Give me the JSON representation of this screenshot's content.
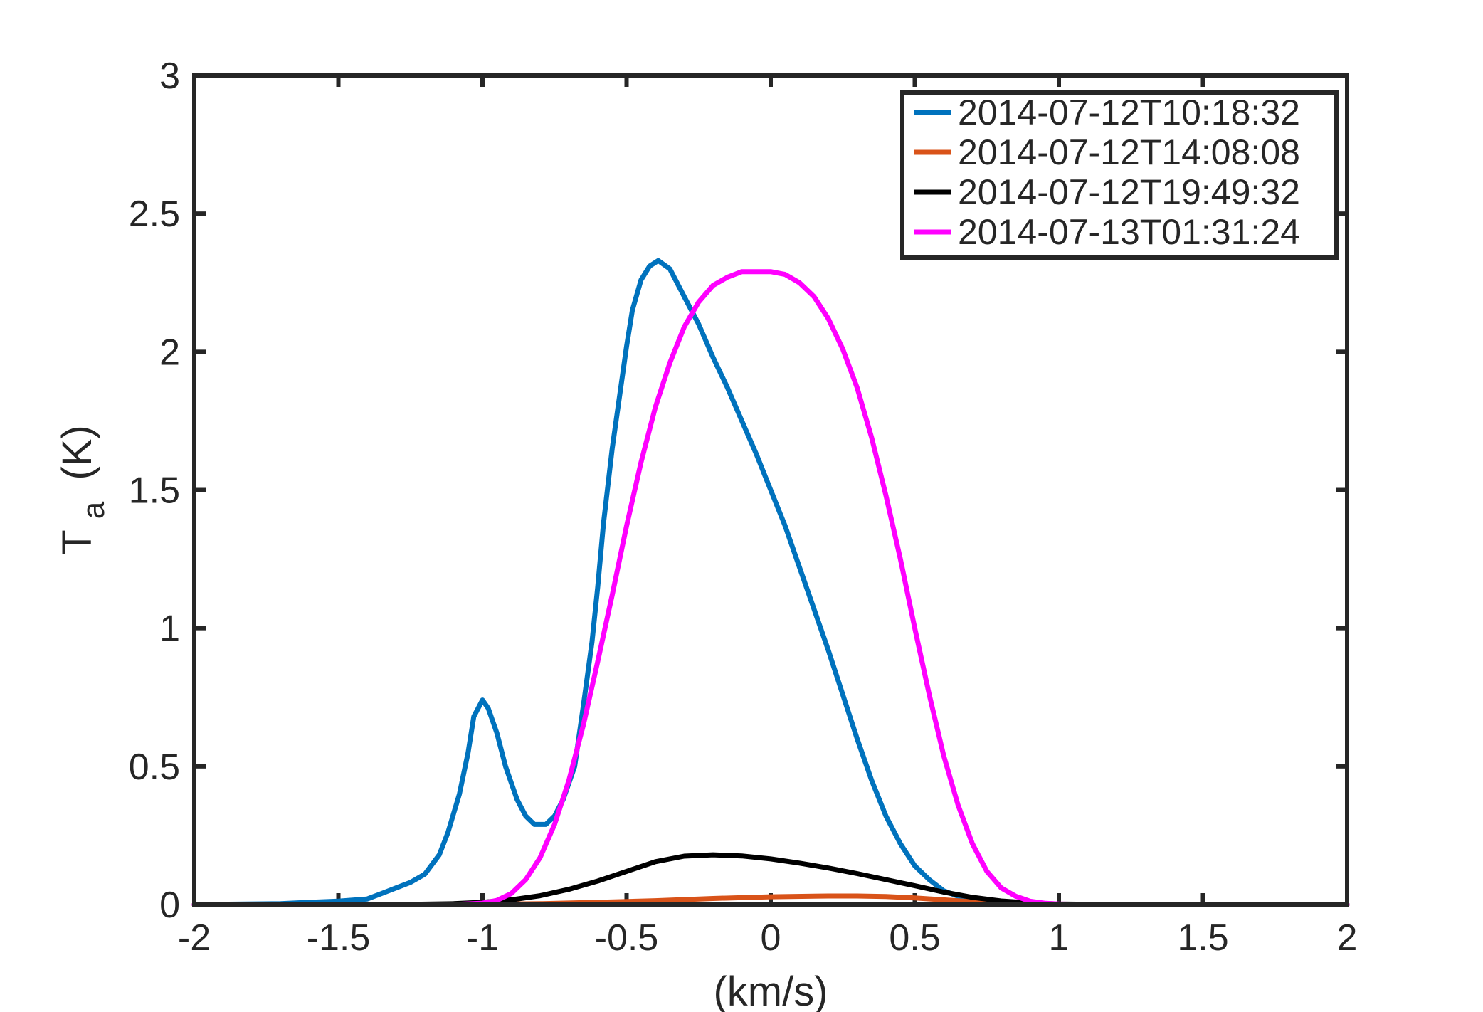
{
  "chart_data": {
    "type": "line",
    "title": "",
    "xlabel": "(km/s)",
    "ylabel": {
      "main": "T",
      "subscript": "a",
      "unit": "(K)"
    },
    "xlim": [
      -2,
      2
    ],
    "ylim": [
      0,
      3
    ],
    "xticks": [
      "-2",
      "-1.5",
      "-1",
      "-0.5",
      "0",
      "0.5",
      "1",
      "1.5",
      "2"
    ],
    "yticks": [
      "0",
      "0.5",
      "1",
      "1.5",
      "2",
      "2.5",
      "3"
    ],
    "grid": false,
    "legend_position": "top-right",
    "series": [
      {
        "name": "2014-07-12T10:18:32",
        "color": "#0072BD",
        "x": [
          -2.0,
          -1.7,
          -1.6,
          -1.5,
          -1.4,
          -1.35,
          -1.3,
          -1.25,
          -1.2,
          -1.15,
          -1.12,
          -1.08,
          -1.05,
          -1.03,
          -1.0,
          -0.98,
          -0.95,
          -0.92,
          -0.88,
          -0.85,
          -0.82,
          -0.78,
          -0.75,
          -0.72,
          -0.68,
          -0.65,
          -0.62,
          -0.6,
          -0.58,
          -0.55,
          -0.5,
          -0.48,
          -0.45,
          -0.42,
          -0.39,
          -0.35,
          -0.3,
          -0.25,
          -0.2,
          -0.15,
          -0.1,
          -0.05,
          0.0,
          0.05,
          0.1,
          0.15,
          0.2,
          0.25,
          0.3,
          0.35,
          0.4,
          0.45,
          0.5,
          0.55,
          0.6,
          0.65,
          0.7,
          0.75,
          0.8,
          0.85,
          0.9,
          1.0,
          1.2,
          2.0
        ],
        "y": [
          0.0,
          0.003,
          0.008,
          0.012,
          0.02,
          0.04,
          0.06,
          0.08,
          0.11,
          0.18,
          0.26,
          0.4,
          0.55,
          0.68,
          0.74,
          0.71,
          0.62,
          0.5,
          0.38,
          0.32,
          0.29,
          0.29,
          0.32,
          0.38,
          0.5,
          0.72,
          0.95,
          1.15,
          1.38,
          1.65,
          2.02,
          2.15,
          2.26,
          2.31,
          2.33,
          2.3,
          2.2,
          2.1,
          1.98,
          1.87,
          1.75,
          1.63,
          1.5,
          1.37,
          1.22,
          1.07,
          0.92,
          0.76,
          0.6,
          0.45,
          0.32,
          0.22,
          0.14,
          0.09,
          0.05,
          0.03,
          0.018,
          0.012,
          0.008,
          0.005,
          0.003,
          0.001,
          0.0,
          0.0
        ]
      },
      {
        "name": "2014-07-12T14:08:08",
        "color": "#D95319",
        "x": [
          -2.0,
          -1.2,
          -1.0,
          -0.8,
          -0.6,
          -0.4,
          -0.2,
          0.0,
          0.2,
          0.3,
          0.4,
          0.5,
          0.6,
          0.7,
          0.8,
          0.9,
          1.0,
          1.2,
          2.0
        ],
        "y": [
          0.0,
          0.0,
          0.001,
          0.003,
          0.008,
          0.014,
          0.022,
          0.028,
          0.031,
          0.031,
          0.029,
          0.024,
          0.017,
          0.01,
          0.005,
          0.002,
          0.001,
          0.0,
          0.0
        ]
      },
      {
        "name": "2014-07-12T19:49:32",
        "color": "#000000",
        "x": [
          -2.0,
          -1.3,
          -1.1,
          -1.0,
          -0.9,
          -0.8,
          -0.7,
          -0.6,
          -0.5,
          -0.4,
          -0.3,
          -0.2,
          -0.1,
          0.0,
          0.1,
          0.2,
          0.3,
          0.4,
          0.5,
          0.6,
          0.7,
          0.8,
          0.9,
          1.0,
          1.2,
          2.0
        ],
        "y": [
          0.0,
          0.0,
          0.003,
          0.008,
          0.017,
          0.032,
          0.055,
          0.085,
          0.12,
          0.155,
          0.175,
          0.18,
          0.176,
          0.165,
          0.15,
          0.132,
          0.112,
          0.09,
          0.068,
          0.045,
          0.026,
          0.013,
          0.006,
          0.002,
          0.0,
          0.0
        ]
      },
      {
        "name": "2014-07-13T01:31:24",
        "color": "#FF00FF",
        "x": [
          -2.0,
          -1.1,
          -1.0,
          -0.95,
          -0.9,
          -0.85,
          -0.8,
          -0.75,
          -0.7,
          -0.65,
          -0.6,
          -0.55,
          -0.5,
          -0.45,
          -0.4,
          -0.35,
          -0.3,
          -0.25,
          -0.2,
          -0.15,
          -0.1,
          -0.05,
          0.0,
          0.05,
          0.1,
          0.15,
          0.2,
          0.25,
          0.3,
          0.35,
          0.4,
          0.45,
          0.5,
          0.55,
          0.6,
          0.65,
          0.7,
          0.75,
          0.8,
          0.85,
          0.9,
          0.95,
          1.0,
          1.05,
          1.1,
          1.2,
          2.0
        ],
        "y": [
          0.0,
          0.0,
          0.005,
          0.015,
          0.04,
          0.09,
          0.17,
          0.29,
          0.45,
          0.65,
          0.88,
          1.12,
          1.37,
          1.6,
          1.8,
          1.96,
          2.09,
          2.18,
          2.24,
          2.27,
          2.29,
          2.29,
          2.29,
          2.28,
          2.25,
          2.2,
          2.12,
          2.01,
          1.87,
          1.69,
          1.48,
          1.25,
          1.0,
          0.76,
          0.54,
          0.36,
          0.22,
          0.12,
          0.06,
          0.03,
          0.012,
          0.005,
          0.002,
          0.001,
          0.0,
          0.0,
          0.0
        ]
      }
    ]
  }
}
